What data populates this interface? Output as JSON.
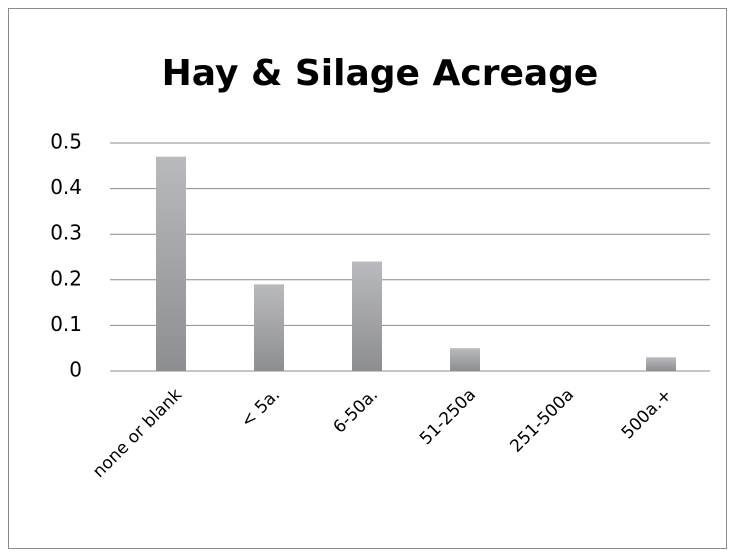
{
  "chart_data": {
    "type": "bar",
    "title": "Hay & Silage Acreage",
    "categories": [
      "none or blank",
      "< 5a.",
      "6-50a.",
      "51-250a",
      "251-500a",
      "500a.+"
    ],
    "values": [
      0.47,
      0.19,
      0.24,
      0.05,
      0,
      0.03
    ],
    "color": "#9c9da1",
    "ylim": [
      0,
      0.5
    ],
    "yticks": [
      0,
      0.1,
      0.2,
      0.3,
      0.4,
      0.5
    ],
    "grid": true
  }
}
